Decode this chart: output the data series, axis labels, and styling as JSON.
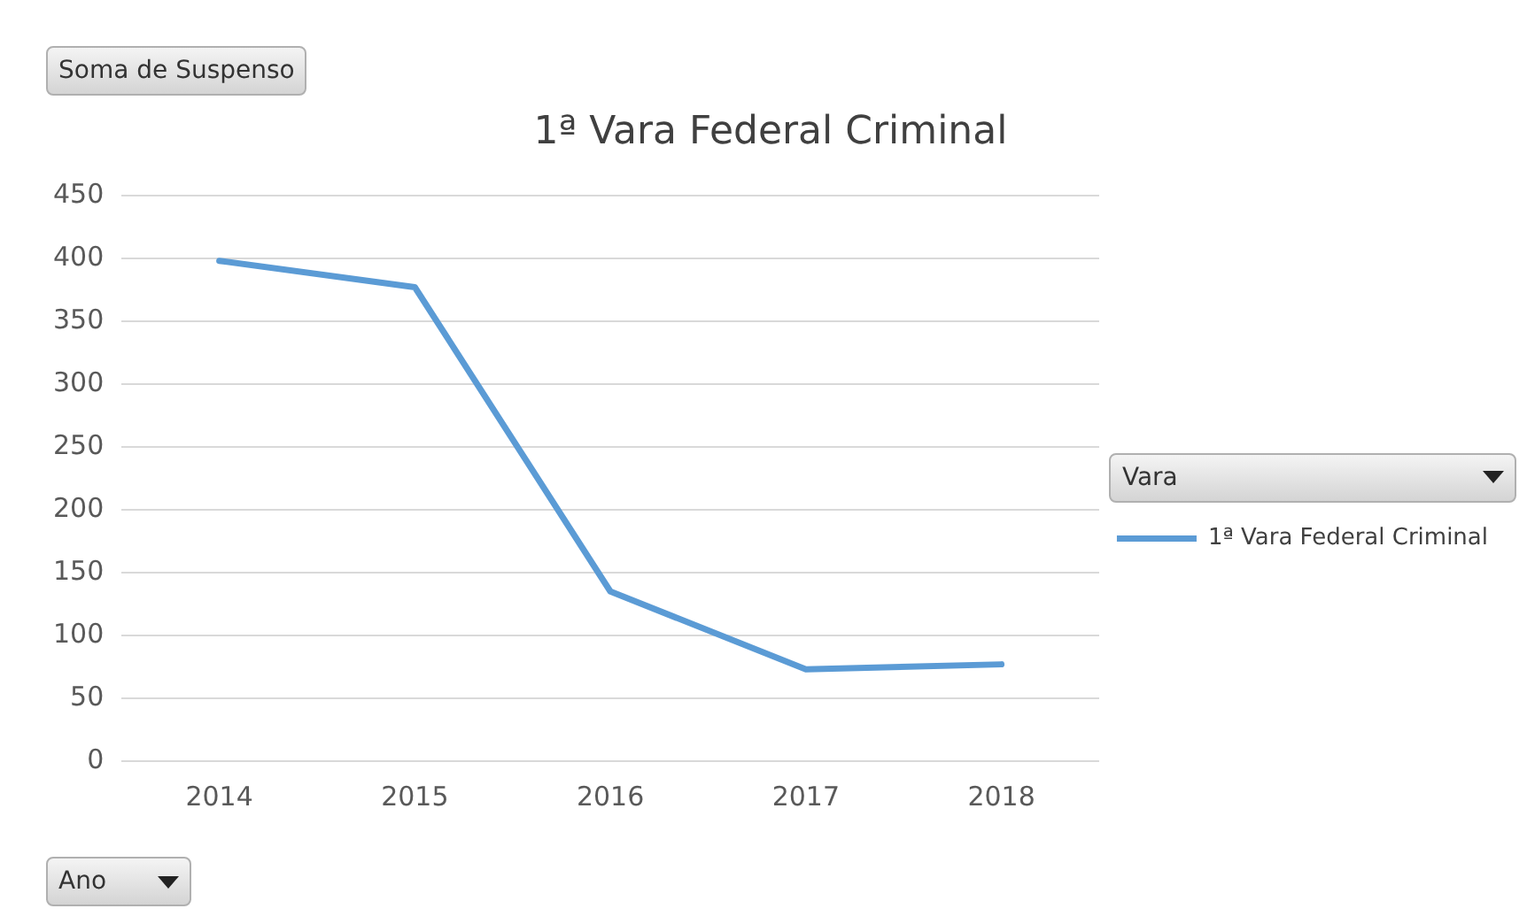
{
  "chart_data": {
    "type": "line",
    "title": "1ª Vara Federal Criminal",
    "legend_title": "Vara",
    "annotations": [
      "Soma de Suspenso",
      "Ano"
    ],
    "categories": [
      "2014",
      "2015",
      "2016",
      "2017",
      "2018"
    ],
    "series": [
      {
        "name": "1ª Vara Federal Criminal",
        "color": "#5b9bd5",
        "values": [
          398,
          377,
          135,
          73,
          77
        ]
      }
    ],
    "ylim": [
      0,
      450
    ],
    "yticks": [
      0,
      50,
      100,
      150,
      200,
      250,
      300,
      350,
      400,
      450
    ],
    "grid": "y",
    "legend": "right",
    "marker": "none",
    "line_style": "solid"
  }
}
